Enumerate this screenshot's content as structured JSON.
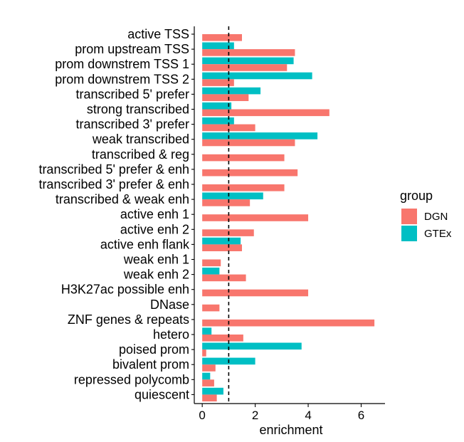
{
  "chart_data": {
    "type": "bar",
    "orientation": "horizontal",
    "categories": [
      "active TSS",
      "prom upstream TSS",
      "prom downstrem TSS 1",
      "prom downstrem TSS 2",
      "transcribed 5' prefer",
      "strong transcribed",
      "transcribed 3' prefer",
      "weak transcribed",
      "transcribed & reg",
      "transcribed 5' prefer & enh",
      "transcribed 3' prefer & enh",
      "transcribed & weak enh",
      "active enh 1",
      "active enh 2",
      "active enh flank",
      "weak enh 1",
      "weak enh 2",
      "H3K27ac possible enh",
      "DNase",
      "ZNF genes & repeats",
      "hetero",
      "poised prom",
      "bivalent prom",
      "repressed polycomb",
      "quiescent"
    ],
    "series": [
      {
        "name": "DGN",
        "color": "#F8766D",
        "values": [
          1.5,
          3.5,
          3.2,
          1.2,
          1.75,
          4.8,
          2.0,
          3.5,
          3.1,
          3.6,
          3.1,
          1.8,
          4.0,
          1.95,
          1.5,
          0.7,
          1.65,
          4.0,
          0.65,
          6.5,
          1.55,
          0.15,
          0.5,
          0.45,
          0.55
        ]
      },
      {
        "name": "GTEx",
        "color": "#00BFC4",
        "values": [
          null,
          1.2,
          3.45,
          4.15,
          2.2,
          1.1,
          1.2,
          4.35,
          null,
          null,
          null,
          2.3,
          null,
          null,
          1.45,
          null,
          0.65,
          null,
          null,
          null,
          0.35,
          3.75,
          2.0,
          0.3,
          0.8
        ]
      }
    ],
    "xlabel": "enrichment",
    "ylabel": "",
    "xlim": [
      -0.3,
      6.9
    ],
    "xticks": [
      0,
      2,
      4,
      6
    ],
    "reference_line": 1,
    "legend": {
      "title": "group",
      "position": "right"
    },
    "grid": false
  }
}
